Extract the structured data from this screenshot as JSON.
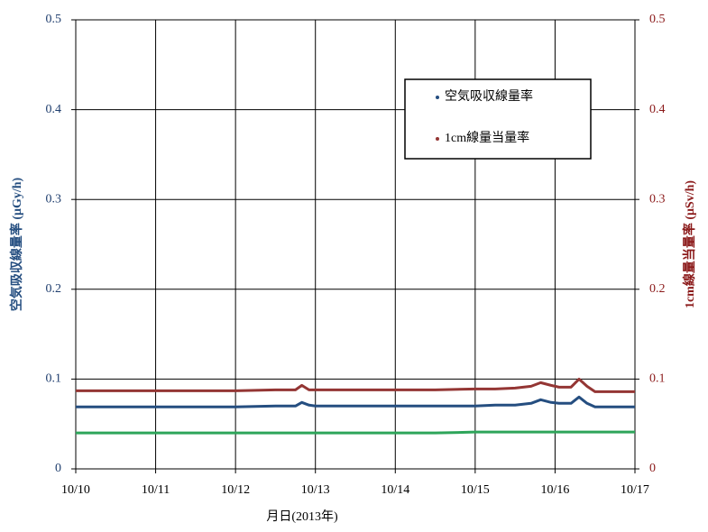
{
  "chart_data": {
    "type": "line",
    "xlabel": "月日(2013年)",
    "ylabel": "空気吸収線量率 (μGy/h)",
    "y2label": "1cm線量当量率 (μSv/h)",
    "xlim": [
      10,
      17
    ],
    "xticks": [
      {
        "value": 10,
        "label": "10/10"
      },
      {
        "value": 11,
        "label": "10/11"
      },
      {
        "value": 12,
        "label": "10/12"
      },
      {
        "value": 13,
        "label": "10/13"
      },
      {
        "value": 14,
        "label": "10/14"
      },
      {
        "value": 15,
        "label": "10/15"
      },
      {
        "value": 16,
        "label": "10/16"
      },
      {
        "value": 17,
        "label": "10/17"
      }
    ],
    "ylim": [
      0,
      0.5
    ],
    "yticks": [
      0,
      0.1,
      0.2,
      0.3,
      0.4,
      0.5
    ],
    "y2lim": [
      0,
      0.5
    ],
    "y2ticks": [
      0,
      0.1,
      0.2,
      0.3,
      0.4,
      0.5
    ],
    "grid": true,
    "legend": "upper right",
    "x": [
      10,
      10.5,
      11,
      11.5,
      12,
      12.5,
      12.75,
      12.83,
      12.92,
      13,
      13.5,
      14,
      14.5,
      15,
      15.25,
      15.5,
      15.7,
      15.82,
      15.95,
      16.05,
      16.2,
      16.3,
      16.4,
      16.5,
      16.75,
      17
    ],
    "series": [
      {
        "name": "空気吸収線量率",
        "color": "#254e80",
        "values": [
          0.069,
          0.069,
          0.069,
          0.069,
          0.069,
          0.07,
          0.07,
          0.074,
          0.071,
          0.07,
          0.07,
          0.07,
          0.07,
          0.07,
          0.071,
          0.071,
          0.073,
          0.077,
          0.074,
          0.073,
          0.073,
          0.08,
          0.073,
          0.069,
          0.069,
          0.069
        ]
      },
      {
        "name": "1cm線量当量率",
        "color": "#943634",
        "axis": "y2",
        "values": [
          0.087,
          0.087,
          0.087,
          0.087,
          0.087,
          0.088,
          0.088,
          0.093,
          0.088,
          0.088,
          0.088,
          0.088,
          0.088,
          0.089,
          0.089,
          0.09,
          0.092,
          0.096,
          0.093,
          0.091,
          0.091,
          0.1,
          0.092,
          0.086,
          0.086,
          0.086
        ]
      },
      {
        "color": "#2ea55a",
        "values": [
          0.04,
          0.04,
          0.04,
          0.04,
          0.04,
          0.04,
          0.04,
          0.04,
          0.04,
          0.04,
          0.04,
          0.04,
          0.04,
          0.041,
          0.041,
          0.041,
          0.041,
          0.041,
          0.041,
          0.041,
          0.041,
          0.041,
          0.041,
          0.041,
          0.041,
          0.041
        ]
      }
    ]
  }
}
